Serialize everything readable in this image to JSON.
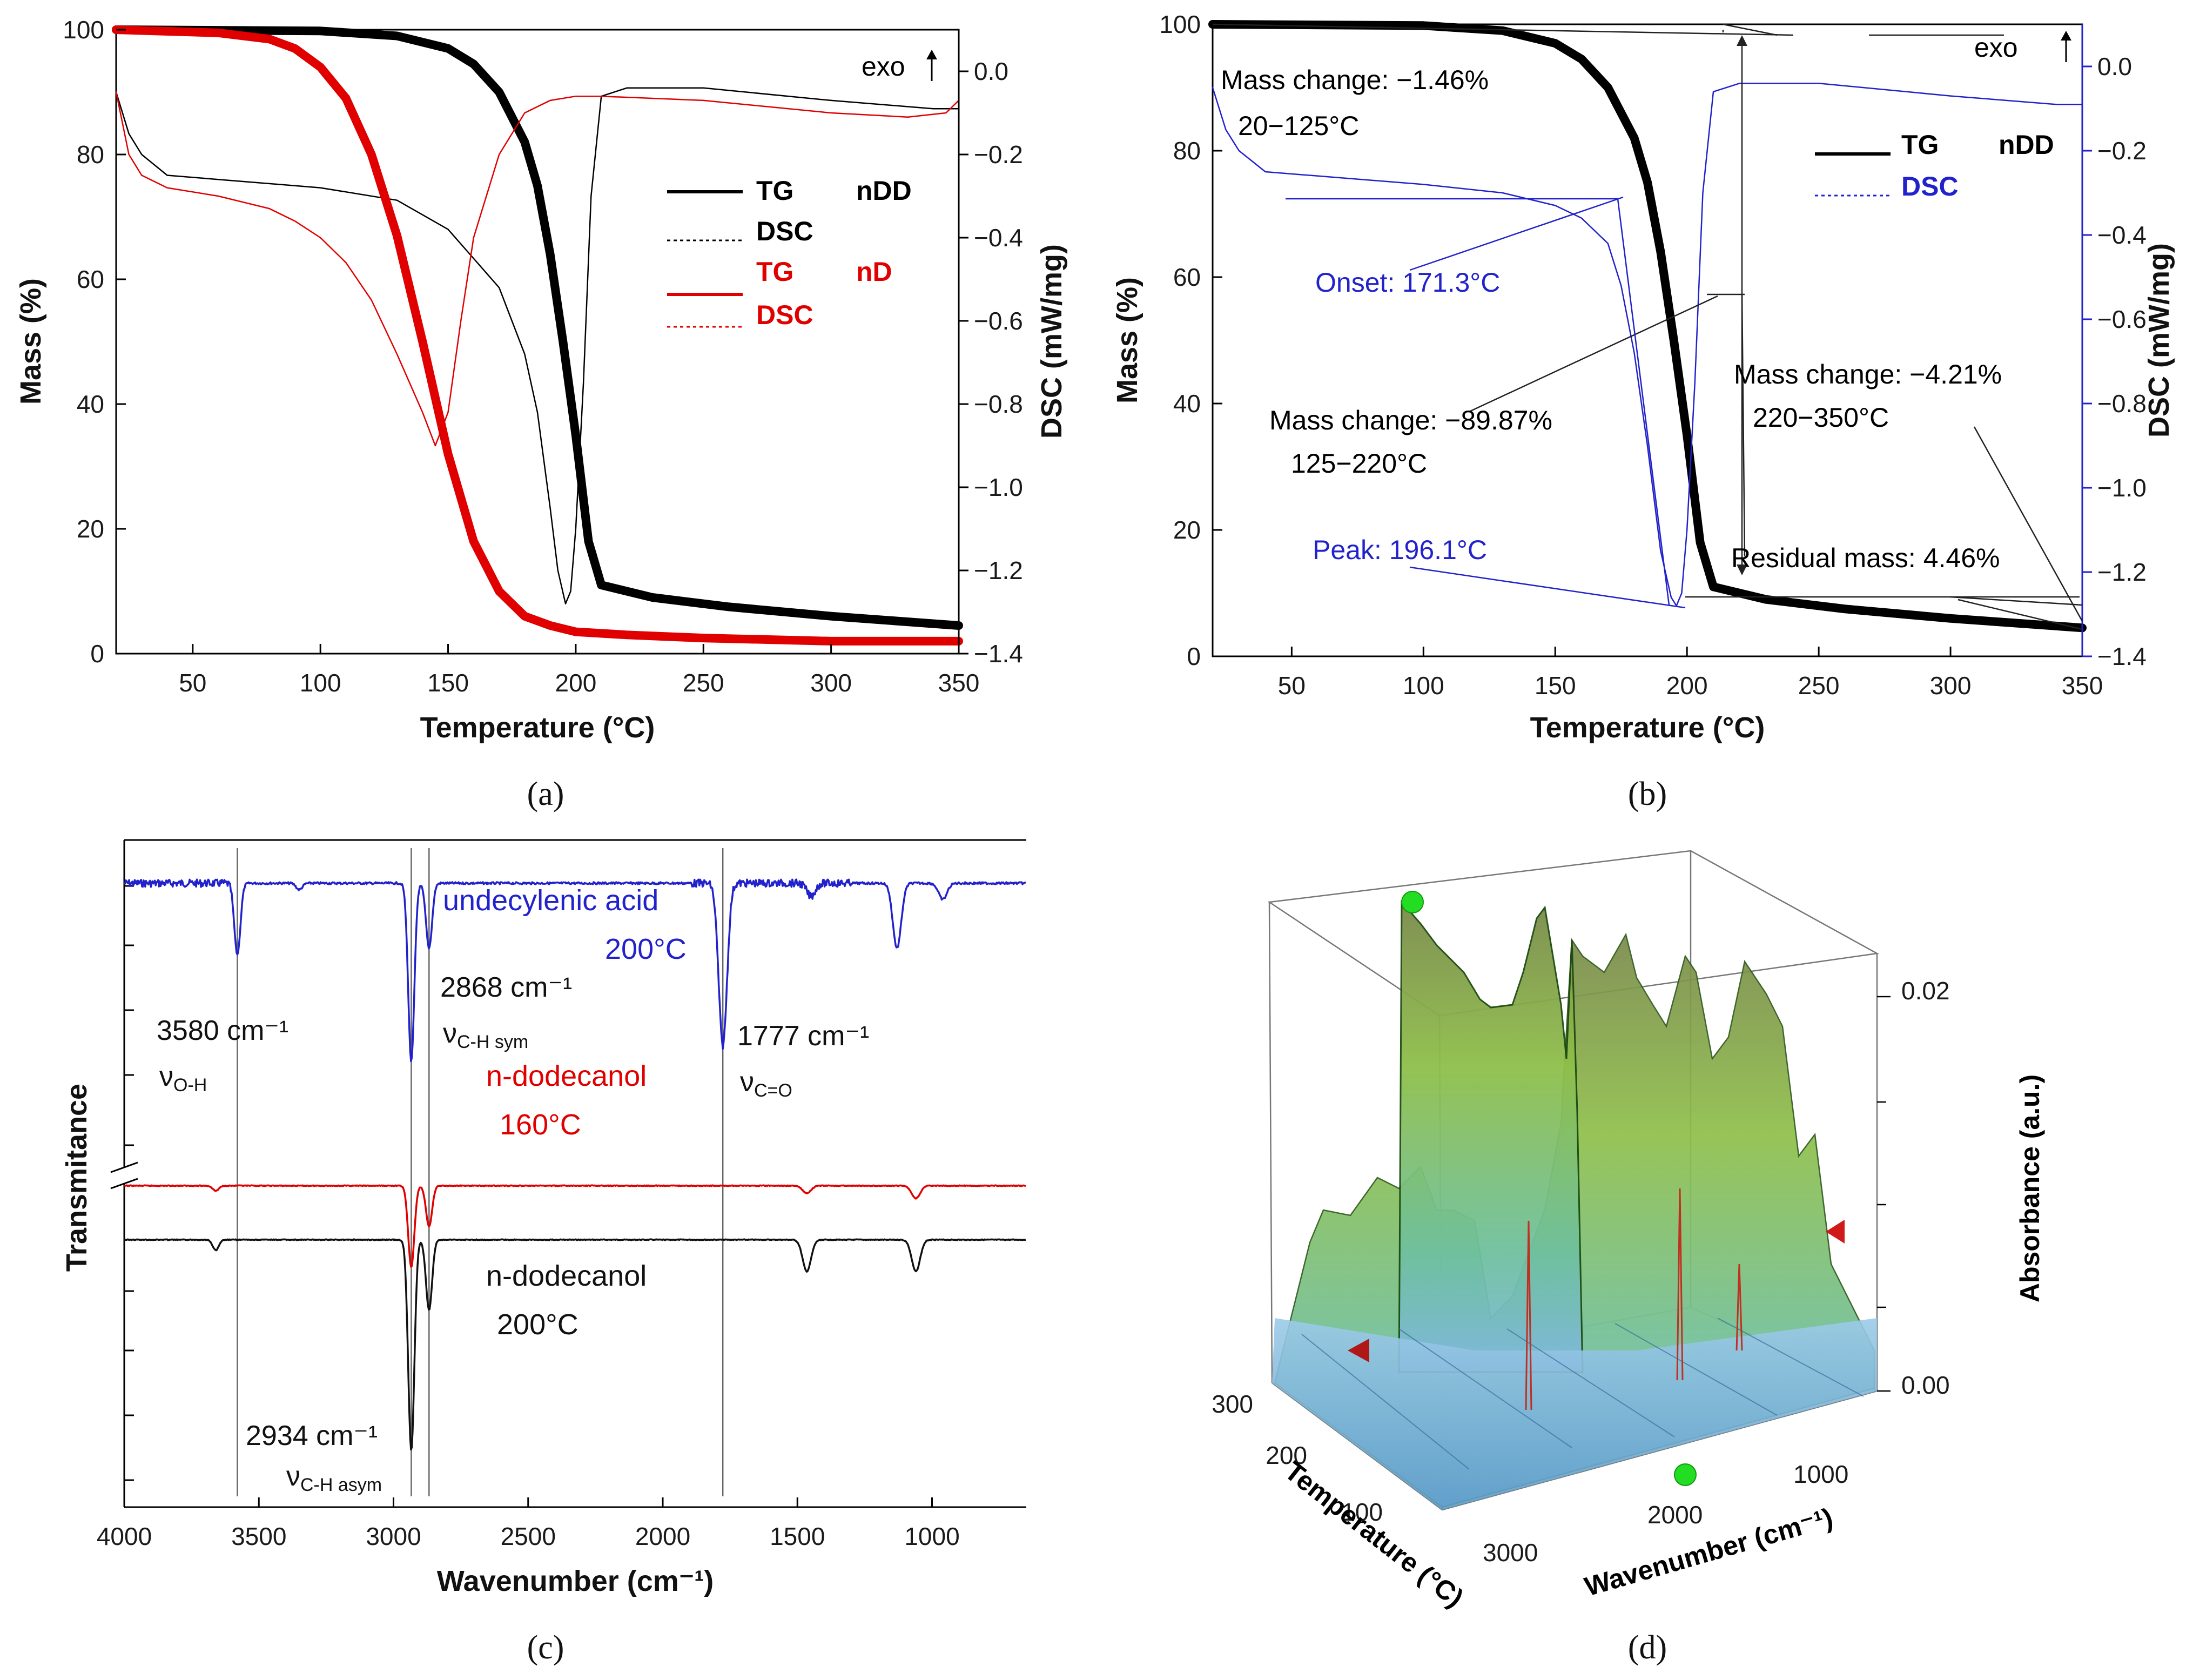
{
  "captions": {
    "a": "(a)",
    "b": "(b)",
    "c": "(c)",
    "d": "(d)"
  },
  "chart_data": [
    {
      "panel": "a",
      "type": "line",
      "xlabel": "Temperature (°C)",
      "ylabel": "Mass (%)",
      "y2label": "DSC (mW/mg)",
      "xlim": [
        20,
        350
      ],
      "ylim": [
        0,
        100
      ],
      "y2lim": [
        -1.4,
        0.1
      ],
      "x_ticks": [
        "50",
        "100",
        "150",
        "200",
        "250",
        "300",
        "350"
      ],
      "y_ticks": [
        "0",
        "20",
        "40",
        "60",
        "80",
        "100"
      ],
      "y2_ticks": [
        "-1.4",
        "-1.2",
        "-1.0",
        "-0.8",
        "-0.6",
        "-0.4",
        "-0.2",
        "0.0"
      ],
      "exo_label": "exo",
      "legend": [
        {
          "line": "TG",
          "sample": "nDD",
          "color": "#000000"
        },
        {
          "line": "DSC",
          "sample": "",
          "color": "#000000"
        },
        {
          "line": "TG",
          "sample": "nD",
          "color": "#e00000"
        },
        {
          "line": "DSC",
          "sample": "",
          "color": "#e00000"
        }
      ],
      "series": [
        {
          "name": "TG nDD",
          "axis": "left",
          "x": [
            20,
            100,
            130,
            150,
            160,
            170,
            180,
            185,
            190,
            195,
            200,
            205,
            210,
            230,
            260,
            300,
            350
          ],
          "y": [
            100,
            99.8,
            99,
            97,
            94.5,
            90,
            82,
            75,
            64,
            50,
            35,
            18,
            11,
            9,
            7.5,
            6,
            4.5
          ]
        },
        {
          "name": "DSC nDD",
          "axis": "right",
          "x": [
            20,
            25,
            30,
            40,
            60,
            100,
            130,
            150,
            170,
            180,
            185,
            190,
            193,
            196,
            198,
            200,
            203,
            206,
            210,
            220,
            250,
            300,
            340,
            350
          ],
          "y": [
            -0.05,
            -0.15,
            -0.2,
            -0.25,
            -0.26,
            -0.28,
            -0.31,
            -0.38,
            -0.52,
            -0.68,
            -0.82,
            -1.05,
            -1.2,
            -1.28,
            -1.25,
            -1.1,
            -0.75,
            -0.3,
            -0.06,
            -0.04,
            -0.04,
            -0.07,
            -0.09,
            -0.09
          ]
        },
        {
          "name": "TG nD",
          "axis": "left",
          "x": [
            20,
            60,
            80,
            90,
            100,
            110,
            120,
            130,
            140,
            150,
            160,
            170,
            180,
            190,
            200,
            220,
            250,
            300,
            350
          ],
          "y": [
            100,
            99.5,
            98.5,
            97,
            94,
            89,
            80,
            67,
            50,
            32,
            18,
            10,
            6,
            4.5,
            3.5,
            3,
            2.5,
            2,
            2
          ]
        },
        {
          "name": "DSC nD",
          "axis": "right",
          "x": [
            20,
            25,
            30,
            40,
            60,
            80,
            90,
            100,
            110,
            120,
            130,
            140,
            145,
            150,
            155,
            160,
            170,
            180,
            190,
            200,
            210,
            250,
            300,
            330,
            345,
            350
          ],
          "y": [
            -0.05,
            -0.2,
            -0.25,
            -0.28,
            -0.3,
            -0.33,
            -0.36,
            -0.4,
            -0.46,
            -0.55,
            -0.68,
            -0.82,
            -0.9,
            -0.82,
            -0.6,
            -0.4,
            -0.2,
            -0.1,
            -0.07,
            -0.06,
            -0.06,
            -0.07,
            -0.1,
            -0.11,
            -0.1,
            -0.07
          ]
        }
      ]
    },
    {
      "panel": "b",
      "type": "line",
      "xlabel": "Temperature (°C)",
      "ylabel": "Mass (%)",
      "y2label": "DSC (mW/mg)",
      "xlim": [
        20,
        350
      ],
      "ylim": [
        0,
        100
      ],
      "y2lim": [
        -1.4,
        0.1
      ],
      "x_ticks": [
        "50",
        "100",
        "150",
        "200",
        "250",
        "300",
        "350"
      ],
      "y_ticks": [
        "0",
        "20",
        "40",
        "60",
        "80",
        "100"
      ],
      "y2_ticks": [
        "-1.4",
        "-1.2",
        "-1.0",
        "-0.8",
        "-0.6",
        "-0.4",
        "-0.2",
        "0.0"
      ],
      "exo_label": "exo",
      "legend": [
        {
          "line": "TG",
          "sample": "nDD",
          "color": "#000000"
        },
        {
          "line": "DSC",
          "sample": "",
          "color": "#2222cc"
        }
      ],
      "annotations": [
        {
          "text": "Mass change: −1.46%",
          "color": "#111111"
        },
        {
          "text": "20−125°C",
          "color": "#111111"
        },
        {
          "text": "Onset: 171.3°C",
          "color": "#2222cc"
        },
        {
          "text": "Mass change: −89.87%",
          "color": "#111111"
        },
        {
          "text": "125−220°C",
          "color": "#111111"
        },
        {
          "text": "Peak: 196.1°C",
          "color": "#2222cc"
        },
        {
          "text": "Mass change: −4.21%",
          "color": "#111111"
        },
        {
          "text": "220−350°C",
          "color": "#111111"
        },
        {
          "text": "Residual mass: 4.46%",
          "color": "#111111"
        }
      ],
      "series": [
        {
          "name": "TG nDD",
          "axis": "left",
          "x": [
            20,
            100,
            130,
            150,
            160,
            170,
            180,
            185,
            190,
            195,
            200,
            205,
            210,
            230,
            260,
            300,
            350
          ],
          "y": [
            100,
            99.8,
            99,
            97,
            94.5,
            90,
            82,
            75,
            64,
            50,
            35,
            18,
            11,
            9,
            7.5,
            6,
            4.5
          ]
        },
        {
          "name": "DSC nDD",
          "axis": "right",
          "x": [
            20,
            25,
            30,
            40,
            60,
            100,
            130,
            150,
            160,
            170,
            175,
            180,
            185,
            190,
            194,
            196,
            198,
            200,
            203,
            206,
            210,
            220,
            250,
            300,
            340,
            350
          ],
          "y": [
            -0.05,
            -0.15,
            -0.2,
            -0.25,
            -0.26,
            -0.28,
            -0.3,
            -0.33,
            -0.36,
            -0.42,
            -0.52,
            -0.68,
            -0.9,
            -1.15,
            -1.26,
            -1.28,
            -1.25,
            -1.1,
            -0.75,
            -0.3,
            -0.06,
            -0.04,
            -0.04,
            -0.07,
            -0.09,
            -0.09
          ]
        }
      ]
    },
    {
      "panel": "c",
      "type": "line",
      "xlabel": "Wavenumber (cm⁻¹)",
      "ylabel": "Transmitance",
      "xlim": [
        4000,
        650
      ],
      "x_reversed": true,
      "x_ticks": [
        "4000",
        "3500",
        "3000",
        "2500",
        "2000",
        "1500",
        "1000"
      ],
      "markers": [
        3580,
        2934,
        2868,
        1777
      ],
      "labels": {
        "m3580": "3580 cm⁻¹",
        "v_oh": "ν",
        "v_oh_sub": "O-H",
        "m2868": "2868 cm⁻¹",
        "v_chsym": "ν",
        "v_chsym_sub": "C-H sym",
        "m1777": "1777 cm⁻¹",
        "v_co": "ν",
        "v_co_sub": "C=O",
        "m2934": "2934 cm⁻¹",
        "v_chasym": "ν",
        "v_chasym_sub": "C-H asym"
      },
      "series": [
        {
          "name": "undecylenic acid",
          "temp": "200°C",
          "color": "#2222cc",
          "peaks": [
            [
              3580,
              0.22
            ],
            [
              2934,
              0.55
            ],
            [
              2868,
              0.2
            ],
            [
              1777,
              0.5
            ],
            [
              1130,
              0.2
            ],
            [
              1450,
              0.04
            ],
            [
              960,
              0.05
            ],
            [
              3350,
              0.02
            ]
          ]
        },
        {
          "name": "n-dodecanol",
          "temp": "160°C",
          "color": "#e00000",
          "peaks": [
            [
              3660,
              0.02
            ],
            [
              2934,
              0.32
            ],
            [
              2868,
              0.16
            ],
            [
              1465,
              0.03
            ],
            [
              1060,
              0.05
            ]
          ]
        },
        {
          "name": "n-dodecanol",
          "temp": "200°C",
          "color": "#111111",
          "peaks": [
            [
              3660,
              0.03
            ],
            [
              2934,
              0.6
            ],
            [
              2868,
              0.2
            ],
            [
              1465,
              0.09
            ],
            [
              1060,
              0.09
            ]
          ]
        }
      ]
    },
    {
      "panel": "d",
      "type": "surface",
      "xlabel": "Wavenumber (cm⁻¹)",
      "ylabel": "Temperature (°C)",
      "zlabel": "Absorbance (a.u.)",
      "x_ticks": [
        "3000",
        "2000",
        "1000"
      ],
      "y_ticks": [
        "100",
        "200",
        "300"
      ],
      "z_ticks": [
        "0.00",
        "0.02"
      ]
    }
  ]
}
